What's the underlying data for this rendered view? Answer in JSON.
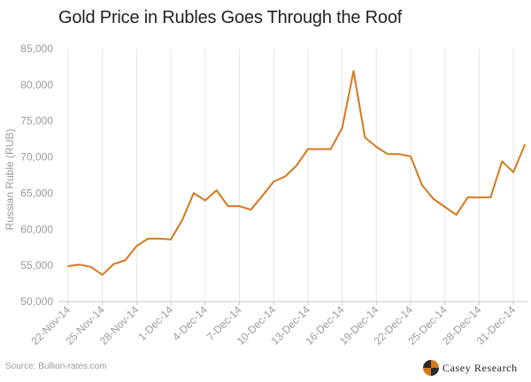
{
  "chart_data": {
    "type": "line",
    "title": "Gold Price in Rubles Goes Through the Roof",
    "ylabel": "Russian Ruble (RUB)",
    "xlabel": "",
    "ylim": [
      50000,
      85000
    ],
    "yticks": [
      50000,
      55000,
      60000,
      65000,
      70000,
      75000,
      80000,
      85000
    ],
    "ytick_labels": [
      "50,000",
      "55,000",
      "60,000",
      "65,000",
      "70,000",
      "75,000",
      "80,000",
      "85,000"
    ],
    "xtick_labels": [
      "22-Nov-14",
      "25-Nov-14",
      "28-Nov-14",
      "1-Dec-14",
      "4-Dec-14",
      "7-Dec-14",
      "10-Dec-14",
      "13-Dec-14",
      "16-Dec-14",
      "19-Dec-14",
      "22-Dec-14",
      "25-Dec-14",
      "28-Dec-14",
      "31-Dec-14"
    ],
    "grid": "vertical",
    "series_color": "#d4781e",
    "series": [
      {
        "values": [
          54900,
          55100,
          54800,
          53700,
          55200,
          55700,
          57700,
          58700,
          58700,
          58600,
          61300,
          65000,
          64000,
          65400,
          63200,
          63200,
          62700,
          64600,
          66600,
          67300,
          68800,
          71100,
          71100,
          71100,
          74000,
          81900,
          72700,
          71400,
          70400,
          70400,
          70100,
          66100,
          64200,
          63100,
          62000,
          64400,
          64400,
          64400,
          69400,
          67900,
          71700
        ]
      }
    ],
    "source": "Source: Bullion-rates.com"
  },
  "logo": {
    "text": "Casey Research"
  }
}
